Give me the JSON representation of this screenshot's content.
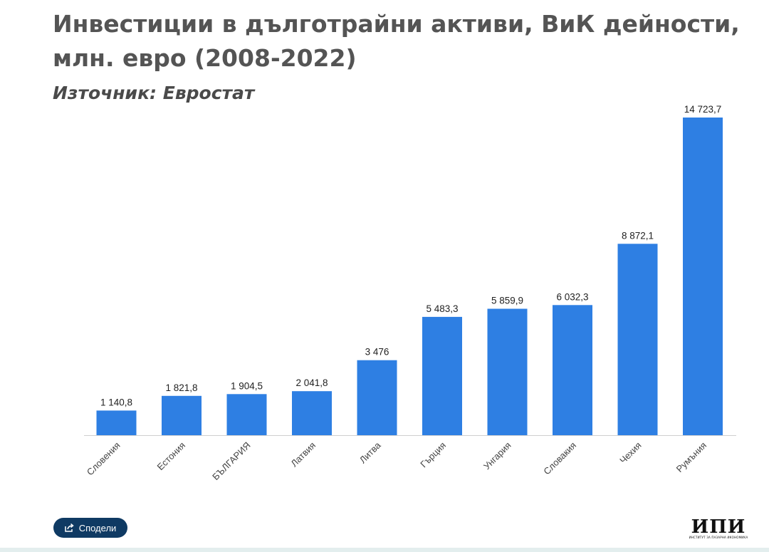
{
  "title": "Инвестиции в дълготрайни активи, ВиК дейности, млн. евро (2008-2022)",
  "subtitle": "Източник: Евростат",
  "share_button": {
    "label": "Сподели",
    "icon": "share-icon"
  },
  "logo": {
    "text": "ИПИ",
    "caption": "ИНСТИТУТ ЗА ПАЗАРНА ИКОНОМИКА"
  },
  "colors": {
    "bar": "#2e7fe3",
    "axis": "#cfcfcf",
    "label": "#222222",
    "tick": "#444444"
  },
  "chart_data": {
    "type": "bar",
    "categories": [
      "Словения",
      "Естония",
      "БЪЛГАРИЯ",
      "Латвия",
      "Литва",
      "Гърция",
      "Унгария",
      "Словакия",
      "Чехия",
      "Румъния"
    ],
    "values": [
      1140.8,
      1821.8,
      1904.5,
      2041.8,
      3476,
      5483.3,
      5859.9,
      6032.3,
      8872.1,
      14723.7
    ],
    "value_labels": [
      "1 140,8",
      "1 821,8",
      "1 904,5",
      "2 041,8",
      "3 476",
      "5 483,3",
      "5 859,9",
      "6 032,3",
      "8 872,1",
      "14 723,7"
    ],
    "title": "Инвестиции в дълготрайни активи, ВиК дейности, млн. евро (2008-2022)",
    "xlabel": "",
    "ylabel": "",
    "ylim": [
      0,
      14723.7
    ],
    "grid": false,
    "legend": "none"
  }
}
